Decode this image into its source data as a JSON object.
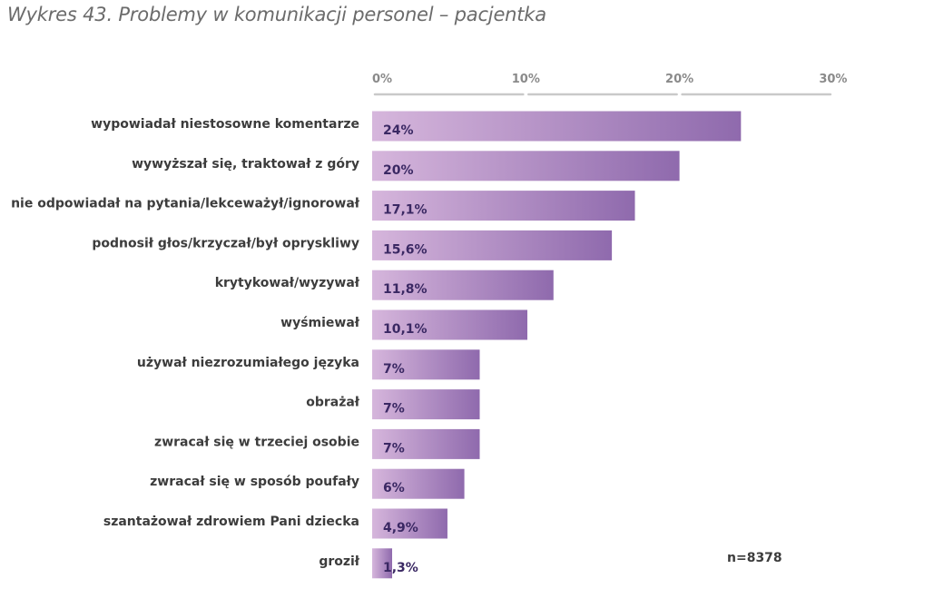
{
  "chart_data": {
    "type": "bar",
    "orientation": "horizontal",
    "title": "Wykres 43. Problemy w komunikacji personel – pacjentka",
    "categories": [
      "wypowiadał niestosowne komentarze",
      "wywyższał się, traktował z góry",
      "nie odpowiadał na pytania/lekceważył/ignorował",
      "podnosił głos/krzyczał/był opryskliwy",
      "krytykował/wyzywał",
      "wyśmiewał",
      "używał niezrozumiałego języka",
      "obrażał",
      "zwracał się w trzeciej osobie",
      "zwracał się w sposób poufały",
      "szantażował zdrowiem Pani dziecka",
      "groził"
    ],
    "values": [
      24,
      20,
      17.1,
      15.6,
      11.8,
      10.1,
      7,
      7,
      7,
      6,
      4.9,
      1.3
    ],
    "value_labels": [
      "24%",
      "20%",
      "17,1%",
      "15,6%",
      "11,8%",
      "10,1%",
      "7%",
      "7%",
      "7%",
      "6%",
      "4,9%",
      "1,3%"
    ],
    "x_ticks": [
      0,
      10,
      20,
      30
    ],
    "x_tick_labels": [
      "0%",
      "10%",
      "20%",
      "30%"
    ],
    "xlim": [
      0,
      30
    ],
    "axis_position": "top",
    "grid": false,
    "note": "n=8378",
    "colors": {
      "bar_start": "#d6b6dc",
      "bar_end": "#8f6aad",
      "value_text": "#3a2863",
      "axis": "#c9c9c9"
    }
  }
}
